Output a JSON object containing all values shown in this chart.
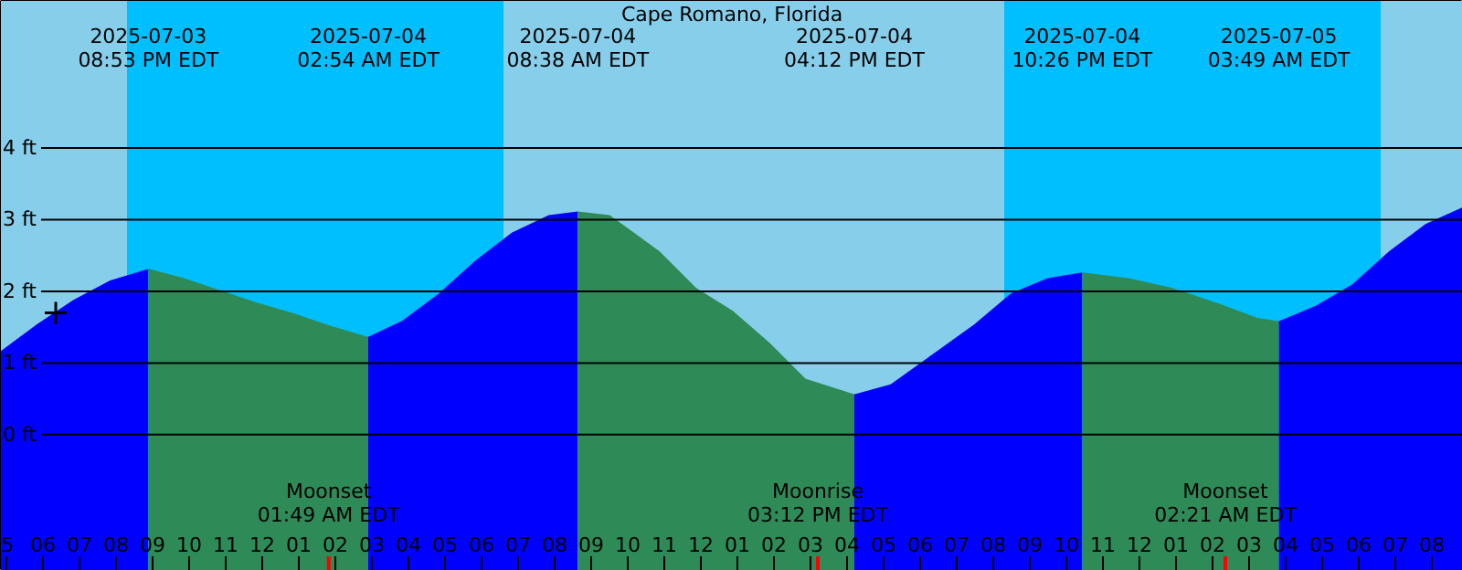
{
  "chart_data": {
    "type": "area",
    "title": "Cape Romano, Florida",
    "xlim": [
      "2025-07-03T16:51",
      "2025-07-05T08:51"
    ],
    "ylim": [
      -1.9,
      6.05
    ],
    "xticks": [
      {
        "value": "2025-07-03T17:00",
        "label": "5"
      },
      {
        "value": "2025-07-03T18:00",
        "label": "06"
      },
      {
        "value": "2025-07-03T19:00",
        "label": "07"
      },
      {
        "value": "2025-07-03T20:00",
        "label": "08"
      },
      {
        "value": "2025-07-03T21:00",
        "label": "09"
      },
      {
        "value": "2025-07-03T22:00",
        "label": "10"
      },
      {
        "value": "2025-07-03T23:00",
        "label": "11"
      },
      {
        "value": "2025-07-04T00:00",
        "label": "12"
      },
      {
        "value": "2025-07-04T01:00",
        "label": "01"
      },
      {
        "value": "2025-07-04T02:00",
        "label": "02"
      },
      {
        "value": "2025-07-04T03:00",
        "label": "03"
      },
      {
        "value": "2025-07-04T04:00",
        "label": "04"
      },
      {
        "value": "2025-07-04T05:00",
        "label": "05"
      },
      {
        "value": "2025-07-04T06:00",
        "label": "06"
      },
      {
        "value": "2025-07-04T07:00",
        "label": "07"
      },
      {
        "value": "2025-07-04T08:00",
        "label": "08"
      },
      {
        "value": "2025-07-04T09:00",
        "label": "09"
      },
      {
        "value": "2025-07-04T10:00",
        "label": "10"
      },
      {
        "value": "2025-07-04T11:00",
        "label": "11"
      },
      {
        "value": "2025-07-04T12:00",
        "label": "12"
      },
      {
        "value": "2025-07-04T13:00",
        "label": "01"
      },
      {
        "value": "2025-07-04T14:00",
        "label": "02"
      },
      {
        "value": "2025-07-04T15:00",
        "label": "03"
      },
      {
        "value": "2025-07-04T16:00",
        "label": "04"
      },
      {
        "value": "2025-07-04T17:00",
        "label": "05"
      },
      {
        "value": "2025-07-04T18:00",
        "label": "06"
      },
      {
        "value": "2025-07-04T19:00",
        "label": "07"
      },
      {
        "value": "2025-07-04T20:00",
        "label": "08"
      },
      {
        "value": "2025-07-04T21:00",
        "label": "09"
      },
      {
        "value": "2025-07-04T22:00",
        "label": "10"
      },
      {
        "value": "2025-07-04T23:00",
        "label": "11"
      },
      {
        "value": "2025-07-05T00:00",
        "label": "12"
      },
      {
        "value": "2025-07-05T01:00",
        "label": "01"
      },
      {
        "value": "2025-07-05T02:00",
        "label": "02"
      },
      {
        "value": "2025-07-05T03:00",
        "label": "03"
      },
      {
        "value": "2025-07-05T04:00",
        "label": "04"
      },
      {
        "value": "2025-07-05T05:00",
        "label": "05"
      },
      {
        "value": "2025-07-05T06:00",
        "label": "06"
      },
      {
        "value": "2025-07-05T07:00",
        "label": "07"
      },
      {
        "value": "2025-07-05T08:00",
        "label": "08"
      }
    ],
    "yticks": [
      {
        "value": 0,
        "label": "0 ft"
      },
      {
        "value": 1,
        "label": "1 ft"
      },
      {
        "value": 2,
        "label": "2 ft"
      },
      {
        "value": 3,
        "label": "3 ft"
      },
      {
        "value": 4,
        "label": "4 ft"
      }
    ],
    "grid": "y",
    "bands": [
      {
        "axis": "x",
        "from": "2025-07-03T16:51",
        "to": "2025-07-03T20:18",
        "label": null,
        "color": "#87ceeb"
      },
      {
        "axis": "x",
        "from": "2025-07-03T20:18",
        "to": "2025-07-04T06:36",
        "label": null,
        "color": "#00bfff"
      },
      {
        "axis": "x",
        "from": "2025-07-04T06:36",
        "to": "2025-07-04T20:18",
        "label": null,
        "color": "#87ceeb"
      },
      {
        "axis": "x",
        "from": "2025-07-04T20:18",
        "to": "2025-07-05T06:36",
        "label": null,
        "color": "#00bfff"
      },
      {
        "axis": "x",
        "from": "2025-07-05T06:36",
        "to": "2025-07-05T08:51",
        "label": null,
        "color": "#87ceeb"
      }
    ],
    "ref_lines": [
      {
        "axis": "x",
        "value": "2025-07-04T01:49",
        "label": "Moonset\n01:49 AM EDT",
        "color": "#ff0000"
      },
      {
        "axis": "x",
        "value": "2025-07-04T15:12",
        "label": "Moonrise\n03:12 PM EDT",
        "color": "#ff0000"
      },
      {
        "axis": "x",
        "value": "2025-07-05T02:21",
        "label": "Moonset\n02:21 AM EDT",
        "color": "#ff0000"
      }
    ],
    "series": [
      {
        "color": "#0000ff",
        "x": [
          "2025-07-03T16:51",
          "2025-07-03T17:51",
          "2025-07-03T18:51",
          "2025-07-03T19:51",
          "2025-07-03T20:53"
        ],
        "values": [
          1.15,
          1.53,
          1.87,
          2.14,
          2.3
        ]
      },
      {
        "color": "#2e8b57",
        "x": [
          "2025-07-03T20:53",
          "2025-07-03T21:51",
          "2025-07-03T22:51",
          "2025-07-03T23:51",
          "2025-07-04T00:51",
          "2025-07-04T01:51",
          "2025-07-04T02:54"
        ],
        "values": [
          2.3,
          2.17,
          2.0,
          1.83,
          1.68,
          1.51,
          1.35
        ]
      },
      {
        "color": "#0000ff",
        "x": [
          "2025-07-04T02:54",
          "2025-07-04T03:51",
          "2025-07-04T04:51",
          "2025-07-04T05:51",
          "2025-07-04T06:51",
          "2025-07-04T07:51",
          "2025-07-04T08:38"
        ],
        "values": [
          1.35,
          1.58,
          1.96,
          2.42,
          2.81,
          3.05,
          3.1
        ]
      },
      {
        "color": "#2e8b57",
        "x": [
          "2025-07-04T08:38",
          "2025-07-04T09:30",
          "2025-07-04T10:51",
          "2025-07-04T11:51",
          "2025-07-04T12:51",
          "2025-07-04T13:51",
          "2025-07-04T14:51",
          "2025-07-04T16:12"
        ],
        "values": [
          3.1,
          3.05,
          2.55,
          2.04,
          1.72,
          1.28,
          0.77,
          0.55
        ]
      },
      {
        "color": "#0000ff",
        "x": [
          "2025-07-04T16:12",
          "2025-07-04T17:12",
          "2025-07-04T18:21",
          "2025-07-04T19:30",
          "2025-07-04T20:30",
          "2025-07-04T21:30",
          "2025-07-04T22:26"
        ],
        "values": [
          0.55,
          0.69,
          1.11,
          1.53,
          1.96,
          2.17,
          2.25
        ]
      },
      {
        "color": "#2e8b57",
        "x": [
          "2025-07-04T22:26",
          "2025-07-04T23:42",
          "2025-07-05T00:51",
          "2025-07-05T02:12",
          "2025-07-05T03:12",
          "2025-07-05T03:49"
        ],
        "values": [
          2.25,
          2.17,
          2.04,
          1.81,
          1.62,
          1.57
        ]
      },
      {
        "color": "#0000ff",
        "x": [
          "2025-07-05T03:49",
          "2025-07-05T04:51",
          "2025-07-05T05:51",
          "2025-07-05T06:51",
          "2025-07-05T07:51",
          "2025-07-05T08:51"
        ],
        "values": [
          1.57,
          1.79,
          2.09,
          2.55,
          2.93,
          3.16
        ]
      },
      {
        "type": "scatter",
        "marker": "cross",
        "color": "#000000",
        "x": [
          "2025-07-03T18:21"
        ],
        "values": [
          1.7
        ]
      }
    ],
    "annotations": [
      "2025-07-03\n08:53 PM EDT",
      "2025-07-04\n02:54 AM EDT",
      "2025-07-04\n08:38 AM EDT",
      "2025-07-04\n04:12 PM EDT",
      "2025-07-04\n10:26 PM EDT",
      "2025-07-05\n03:49 AM EDT"
    ]
  }
}
